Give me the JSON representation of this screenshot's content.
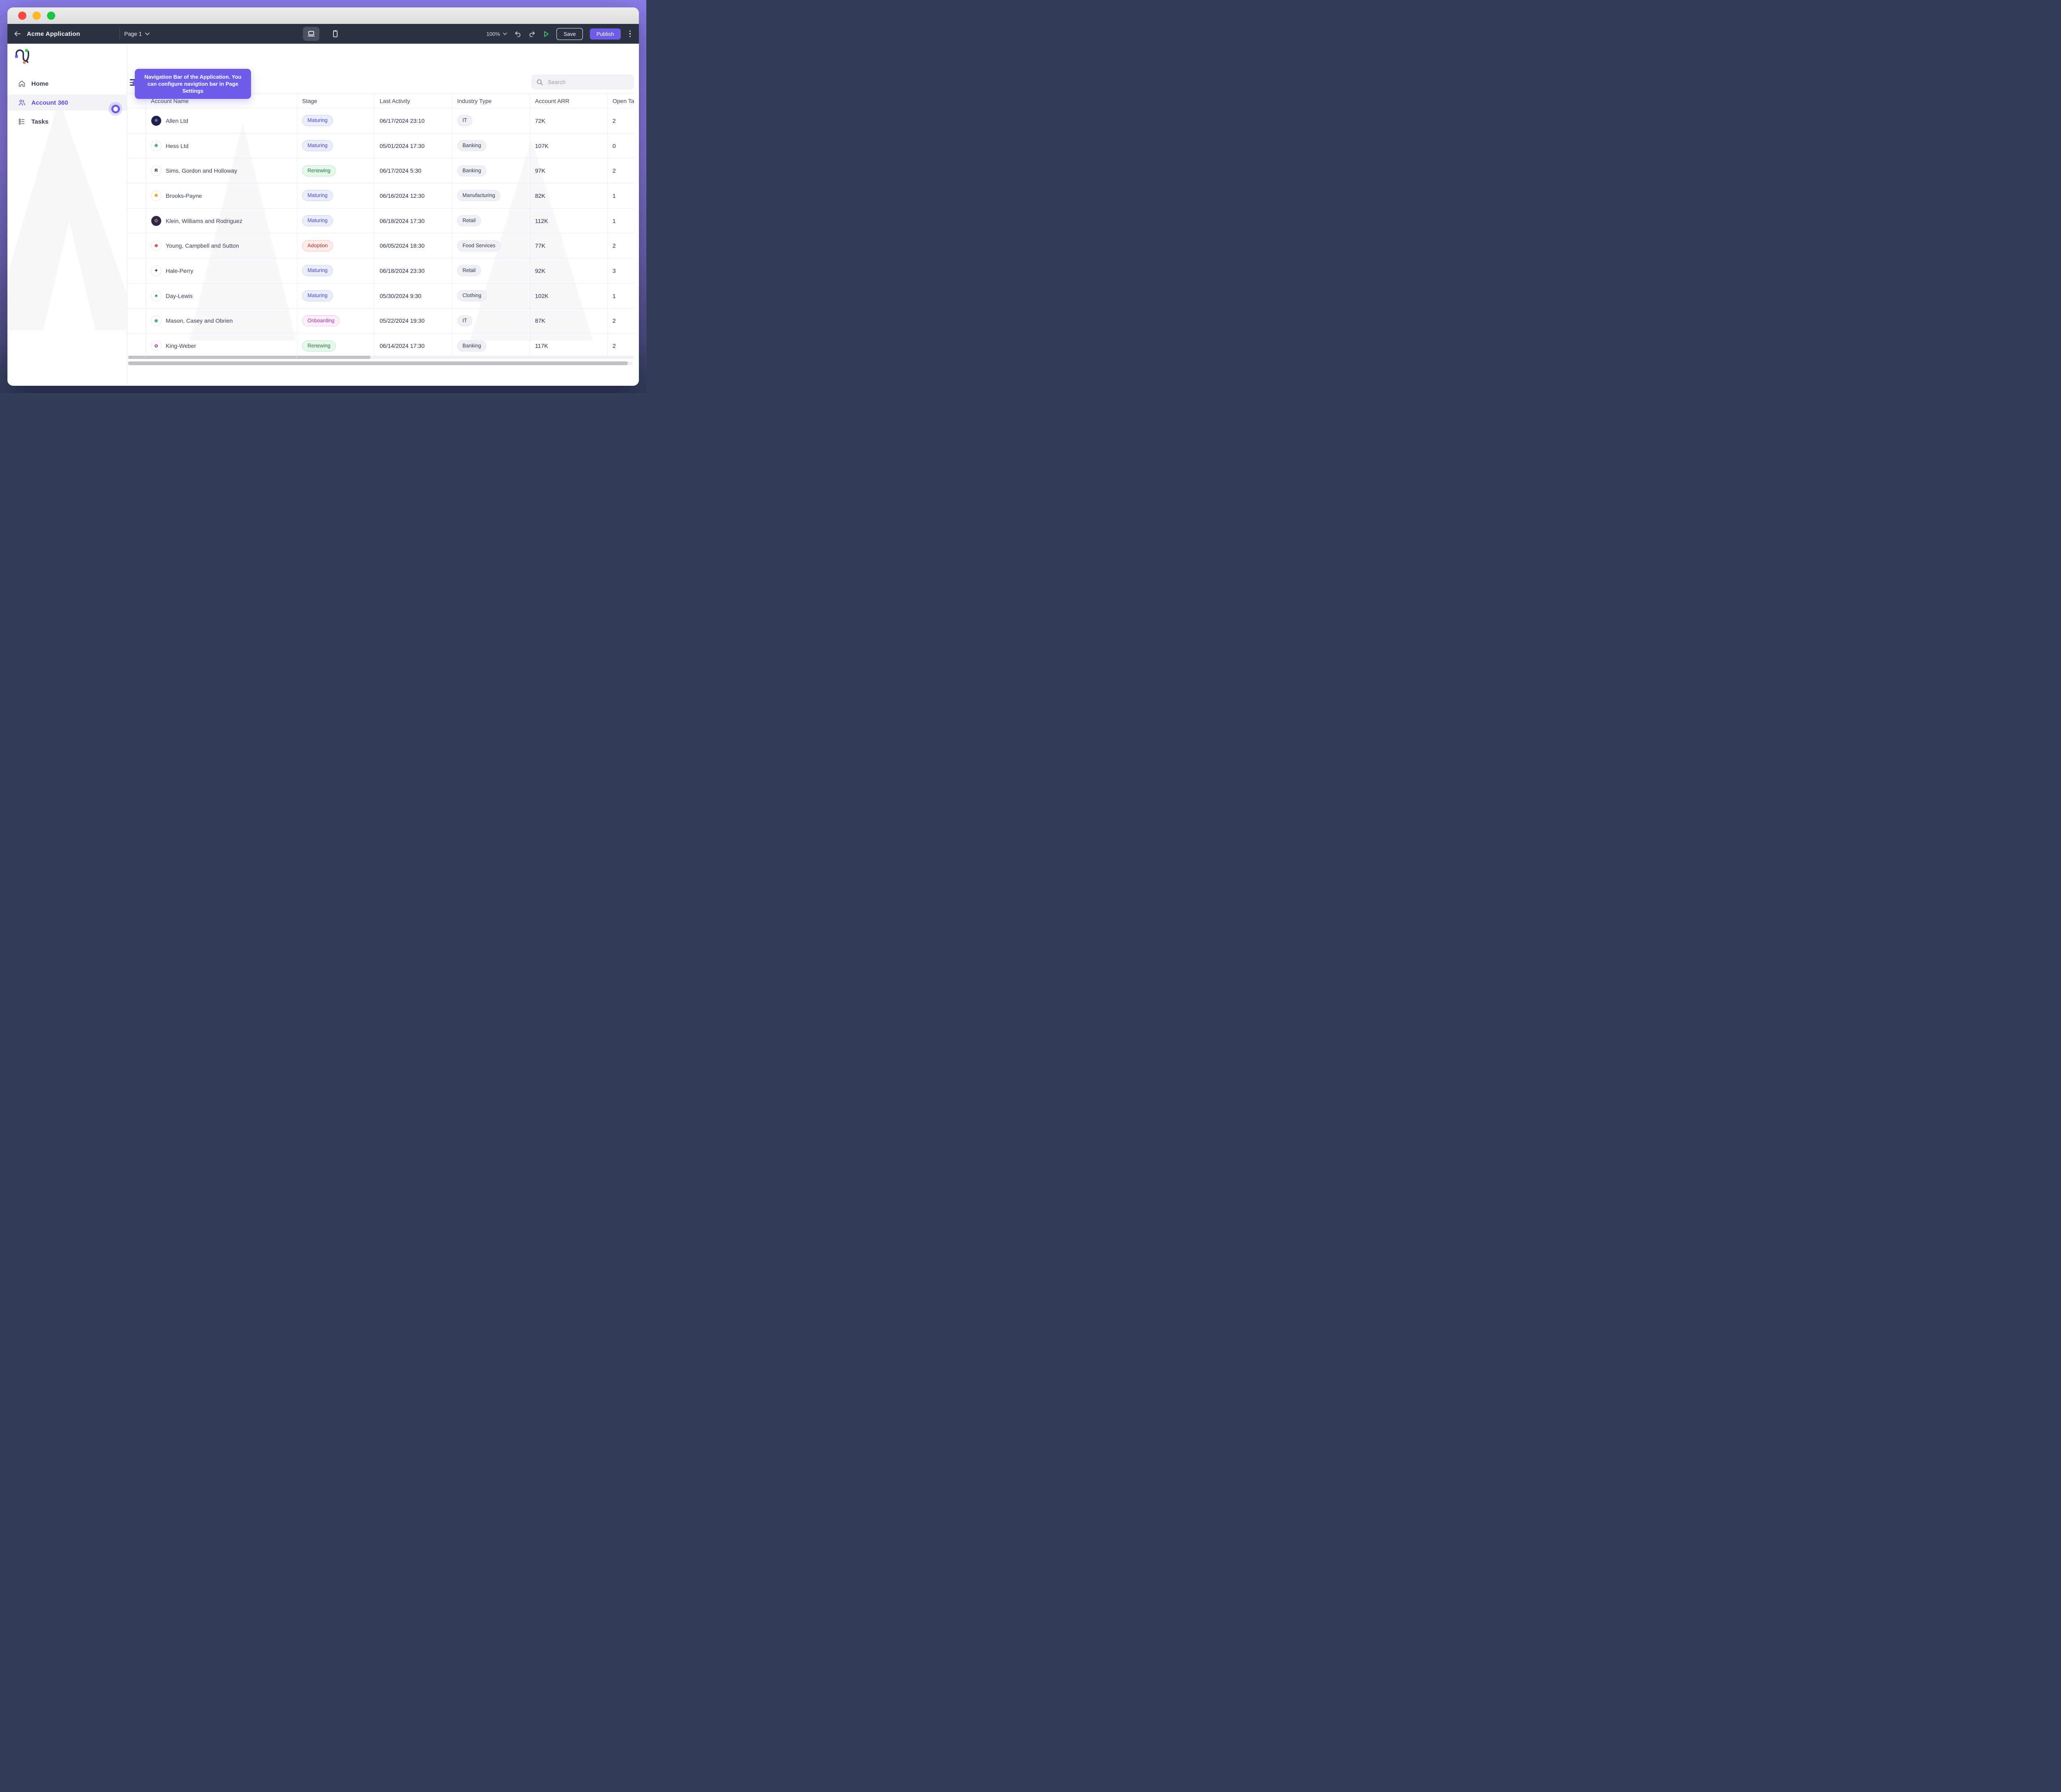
{
  "window": {
    "traffic_lights": [
      "close",
      "minimize",
      "zoom"
    ]
  },
  "toolbar": {
    "app_name": "Acme Application",
    "page_label": "Page 1",
    "zoom_level": "100%",
    "save_label": "Save",
    "publish_label": "Publish",
    "device_toggles": [
      "desktop",
      "mobile"
    ]
  },
  "sidebar": {
    "items": [
      {
        "label": "Home",
        "icon": "home-icon",
        "active": false
      },
      {
        "label": "Account 360",
        "icon": "users-icon",
        "active": true
      },
      {
        "label": "Tasks",
        "icon": "tasks-icon",
        "active": false
      }
    ]
  },
  "tooltip": {
    "text": "Navigation Bar of the Application. You can configure navigtion bar in Page Settings"
  },
  "search": {
    "placeholder": "Search"
  },
  "table": {
    "columns": [
      "",
      "Account Name",
      "Stage",
      "Last Activity",
      "Industry Type",
      "Account ARR",
      "Open Ta"
    ],
    "rows": [
      {
        "name": "Allen Ltd",
        "stage": "Maturing",
        "last_activity": "06/17/2024 23:10",
        "industry": "IT",
        "arr": "72K",
        "open_tasks": "2",
        "avatar": {
          "bg": "#1E2147",
          "fg": "#8F7BF2",
          "glyph": "✳"
        }
      },
      {
        "name": "Hess Ltd",
        "stage": "Maturing",
        "last_activity": "05/01/2024 17:30",
        "industry": "Banking",
        "arr": "107K",
        "open_tasks": "0",
        "avatar": {
          "bg": "#FFFFFF",
          "fg": "#3FA66A",
          "glyph": "❋"
        }
      },
      {
        "name": "Sims, Gordon and Holloway",
        "stage": "Renewing",
        "last_activity": "06/17/2024 5:30",
        "industry": "Banking",
        "arr": "97K",
        "open_tasks": "2",
        "avatar": {
          "bg": "#FFFFFF",
          "fg": "#16181D",
          "glyph": "R"
        }
      },
      {
        "name": "Brooks-Payne",
        "stage": "Maturing",
        "last_activity": "06/16/2024 12:30",
        "industry": "Manufacturing",
        "arr": "82K",
        "open_tasks": "1",
        "avatar": {
          "bg": "#FFFFFF",
          "fg": "#F59E0B",
          "glyph": "❋"
        }
      },
      {
        "name": "Klein, Williams and Rodriguez",
        "stage": "Maturing",
        "last_activity": "06/18/2024 17:30",
        "industry": "Retail",
        "arr": "112K",
        "open_tasks": "1",
        "avatar": {
          "bg": "#232A4A",
          "fg": "#E8594A",
          "glyph": "✿"
        }
      },
      {
        "name": "Young, Campbell and Sutton",
        "stage": "Adoption",
        "last_activity": "06/05/2024 18:30",
        "industry": "Food Services",
        "arr": "77K",
        "open_tasks": "2",
        "avatar": {
          "bg": "#FFFFFF",
          "fg": "#D9534F",
          "glyph": "✾"
        }
      },
      {
        "name": "Hale-Perry",
        "stage": "Maturing",
        "last_activity": "06/18/2024 23:30",
        "industry": "Retail",
        "arr": "92K",
        "open_tasks": "3",
        "avatar": {
          "bg": "#FFFFFF",
          "fg": "#2E3440",
          "glyph": "✦"
        }
      },
      {
        "name": "Day-Lewis",
        "stage": "Maturing",
        "last_activity": "05/30/2024 9:30",
        "industry": "Clothing",
        "arr": "102K",
        "open_tasks": "1",
        "avatar": {
          "bg": "#FFFFFF",
          "fg": "#2F8F46",
          "glyph": "♣"
        }
      },
      {
        "name": "Mason, Casey and Obrien",
        "stage": "Onboarding",
        "last_activity": "05/22/2024 19:30",
        "industry": "IT",
        "arr": "87K",
        "open_tasks": "2",
        "avatar": {
          "bg": "#FFFFFF",
          "fg": "#2FA483",
          "glyph": "❀"
        }
      },
      {
        "name": "King-Weber",
        "stage": "Renewing",
        "last_activity": "06/14/2024 17:30",
        "industry": "Banking",
        "arr": "117K",
        "open_tasks": "2",
        "avatar": {
          "bg": "#FFFFFF",
          "fg": "#A64CA6",
          "glyph": "✿"
        }
      }
    ]
  },
  "colors": {
    "accent": "#6C5CE7",
    "toolbar_bg": "#2C3340",
    "publish_bg": "#6C5CE7",
    "play_green": "#4BD687",
    "traffic": [
      "#F6483F",
      "#FBB82B",
      "#1EC443"
    ],
    "stages": {
      "Maturing": {
        "bg": "#E9EDFC",
        "border": "#C9D4F6",
        "text": "#4A48D6"
      },
      "Renewing": {
        "bg": "#E7F8EC",
        "border": "#BCE8CB",
        "text": "#217A3C"
      },
      "Adoption": {
        "bg": "#FCEBE9",
        "border": "#F3C3BD",
        "text": "#B03A2E"
      },
      "Onboarding": {
        "bg": "#FDEEFC",
        "border": "#F2C7EE",
        "text": "#A833AB"
      }
    },
    "industry_pill": {
      "bg": "#EEF0F5",
      "border": "#E2E5EC",
      "text": "#333A52"
    }
  }
}
